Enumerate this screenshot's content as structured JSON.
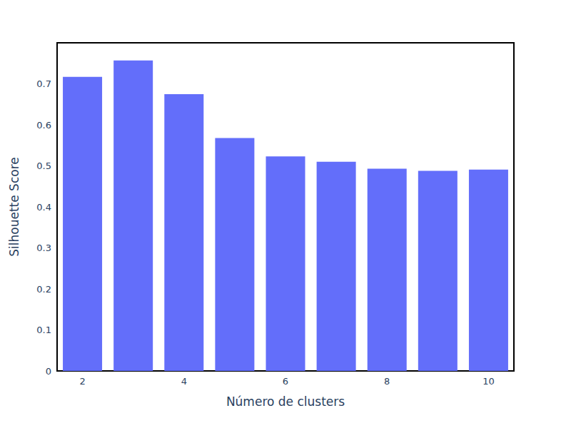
{
  "chart_data": {
    "type": "bar",
    "x": [
      2,
      3,
      4,
      5,
      6,
      7,
      8,
      9,
      10
    ],
    "values": [
      0.717,
      0.757,
      0.675,
      0.568,
      0.523,
      0.51,
      0.493,
      0.488,
      0.491
    ],
    "color": "#636efa",
    "xlabel": "Número de clusters",
    "ylabel": "Silhouette Score",
    "xlim": [
      1.5,
      10.5
    ],
    "xticks": [
      2,
      4,
      6,
      8,
      10
    ],
    "ylim": [
      0,
      0.8
    ],
    "yticks": [
      0,
      0.1,
      0.2,
      0.3,
      0.4,
      0.5,
      0.6,
      0.7
    ],
    "grid": false
  }
}
